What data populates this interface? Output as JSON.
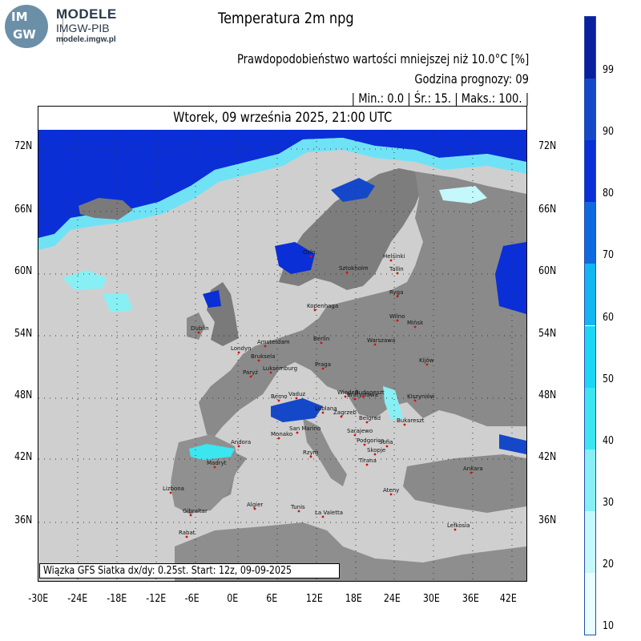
{
  "logo": {
    "short_top": "IM",
    "short_bottom": "GW",
    "line1": "MODELE",
    "line2": "IMGW-PIB",
    "line3": "modele.imgw.pl"
  },
  "title": "Temperatura 2m npg",
  "info": {
    "line1": "Prawdopodobieństwo wartości mniejszej niż 10.0°C [%]",
    "line2": "Godzina prognozy: 09",
    "line3": "| Min.:    0.0 | Śr.:    15. | Maks.:    100. |"
  },
  "date": "Wtorek, 09 września 2025, 21:00 UTC",
  "source": "Wiązka GFS Siatka dx/dy: 0.25st. Start: 12z, 09-09-2025",
  "lat_labels": [
    "72N",
    "66N",
    "60N",
    "54N",
    "48N",
    "42N",
    "36N"
  ],
  "lon_labels": [
    "-30E",
    "-24E",
    "-18E",
    "-12E",
    "-6E",
    "0E",
    "6E",
    "12E",
    "18E",
    "24E",
    "30E",
    "36E",
    "42E"
  ],
  "colorbar": {
    "labels": [
      "99",
      "90",
      "80",
      "70",
      "60",
      "50",
      "40",
      "30",
      "20",
      "10"
    ],
    "colors": [
      "#0a1f9e",
      "#1448c8",
      "#0a2fd6",
      "#0f6ae0",
      "#12b6f0",
      "#1ad8f5",
      "#3ce6f0",
      "#88f0f4",
      "#c4f8fa",
      "#e8fdfd"
    ]
  },
  "cities": [
    "Oslo",
    "Sztokholm",
    "Helsinki",
    "Tallin",
    "Ryga",
    "Kopenhaga",
    "Wilno",
    "Mińsk",
    "Dublin",
    "Londyn",
    "Amsterdam",
    "Berlin",
    "Warszawa",
    "Bruksela",
    "Luksemburg",
    "Paryż",
    "Praga",
    "Kijów",
    "Wiedeń",
    "Bratysława",
    "Budapeszt",
    "Berno",
    "Vaduz",
    "Kiszyniów",
    "Lublana",
    "Zagrzeb",
    "Belgrad",
    "Bukareszt",
    "Monako",
    "San Marino",
    "Sarajewo",
    "Podgorica",
    "Sofia",
    "Skopje",
    "Tirana",
    "Andora",
    "Rzym",
    "Madryt",
    "Ankara",
    "Lizbona",
    "Ateny",
    "Algier",
    "Tunis",
    "Gibraltar",
    "La Valetta",
    "Rabat",
    "Lefkosia"
  ]
}
